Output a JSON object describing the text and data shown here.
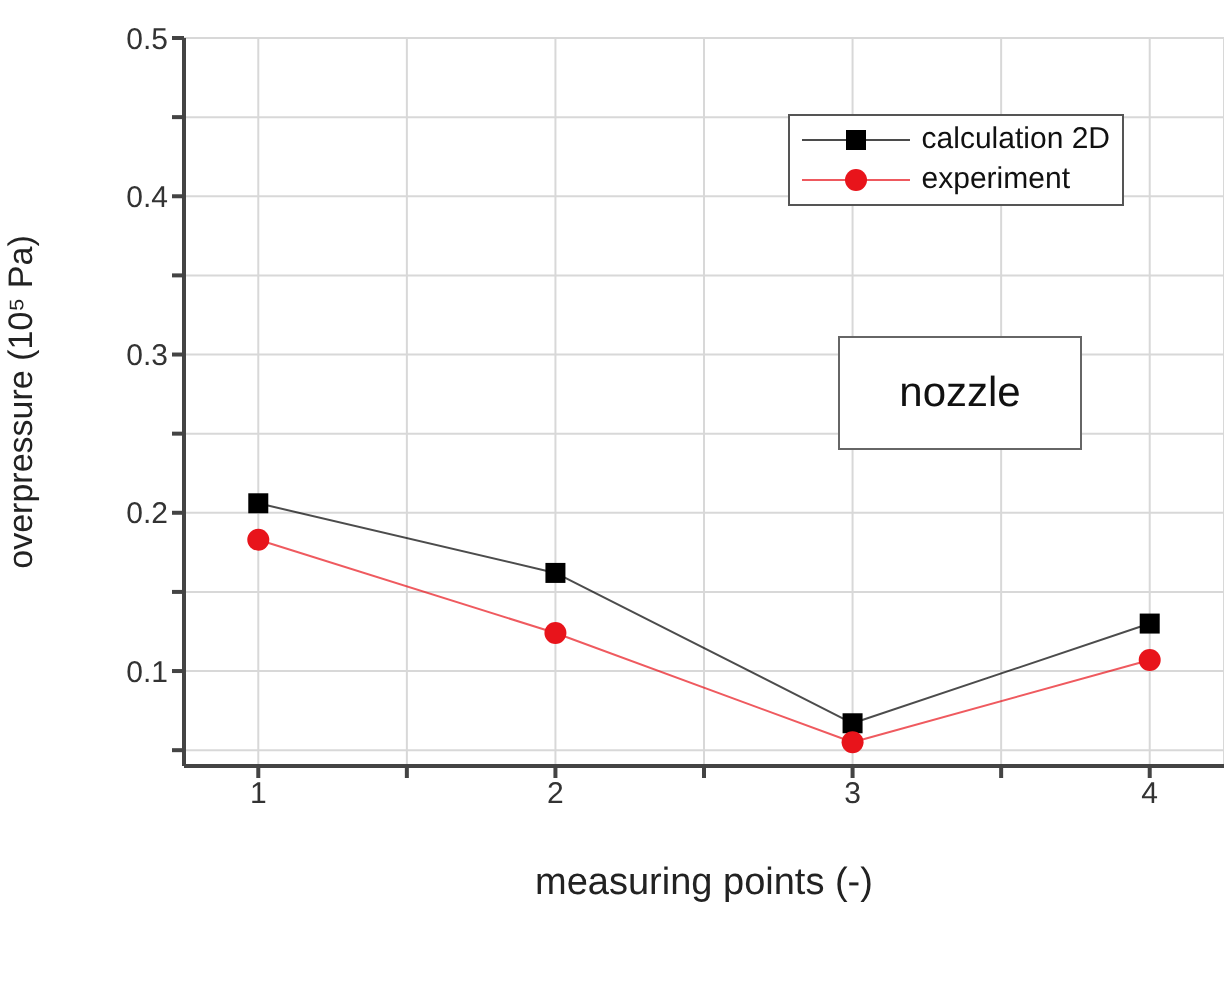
{
  "chart_data": {
    "type": "line",
    "xlabel": "measuring points (-)",
    "ylabel": "overpressure (10⁵ Pa)",
    "x": [
      1,
      2,
      3,
      4
    ],
    "series": [
      {
        "name": "calculation 2D",
        "color": "#000000",
        "marker": "square",
        "values": [
          0.206,
          0.162,
          0.067,
          0.13
        ]
      },
      {
        "name": "experiment",
        "color": "#e8141b",
        "marker": "circle",
        "values": [
          0.183,
          0.124,
          0.055,
          0.107
        ]
      }
    ],
    "xlim": [
      0.75,
      4.25
    ],
    "xticks": [
      1,
      {
        "value": 1.5,
        "label": null
      },
      2,
      {
        "value": 2.5,
        "label": null
      },
      3,
      {
        "value": 3.5,
        "label": null
      },
      4
    ],
    "ylim": [
      0.04,
      0.5
    ],
    "yticks": [
      {
        "value": 0.05,
        "label": null
      },
      0.1,
      {
        "value": 0.15,
        "label": null
      },
      0.2,
      {
        "value": 0.25,
        "label": null
      },
      0.3,
      {
        "value": 0.35,
        "label": null
      },
      0.4,
      {
        "value": 0.45,
        "label": null
      },
      0.5
    ],
    "grid": true,
    "legend": "top right",
    "line_style": "solid",
    "annotations": [
      "nozzle"
    ]
  }
}
